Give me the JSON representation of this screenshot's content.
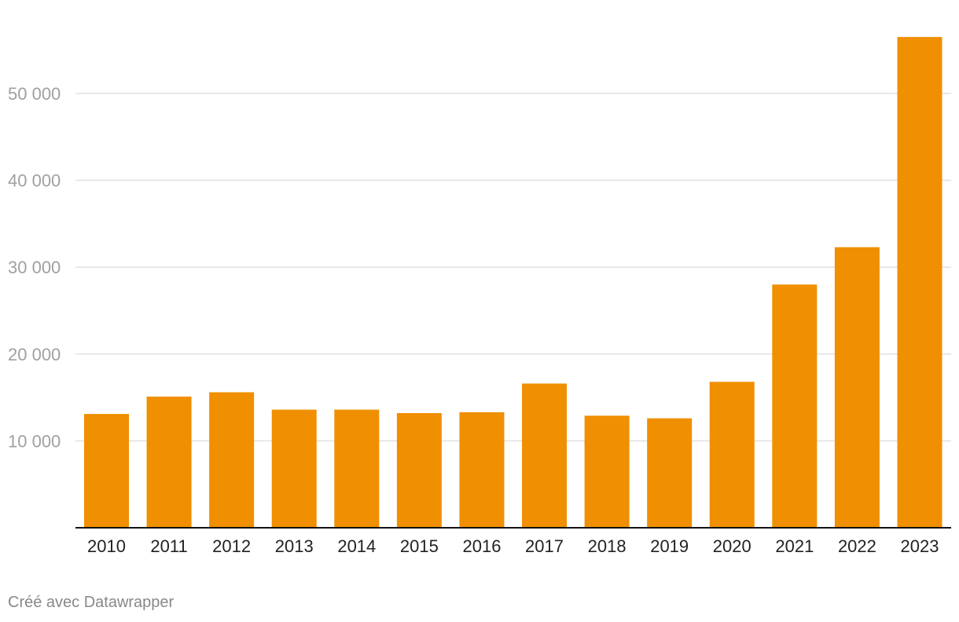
{
  "chart_data": {
    "type": "bar",
    "categories": [
      "2010",
      "2011",
      "2012",
      "2013",
      "2014",
      "2015",
      "2016",
      "2017",
      "2018",
      "2019",
      "2020",
      "2021",
      "2022",
      "2023"
    ],
    "values": [
      13100,
      15100,
      15600,
      13600,
      13600,
      13200,
      13300,
      16600,
      12900,
      12600,
      16800,
      28000,
      32300,
      56500
    ],
    "ylim": [
      0,
      60000
    ],
    "yticks": [
      10000,
      20000,
      30000,
      40000,
      50000
    ],
    "ytick_labels": [
      "10 000",
      "20 000",
      "30 000",
      "40 000",
      "50 000"
    ],
    "grid": true,
    "bar_color": "#f08f00",
    "title": "",
    "xlabel": "",
    "ylabel": ""
  },
  "footer": {
    "credit": "Créé avec Datawrapper"
  }
}
